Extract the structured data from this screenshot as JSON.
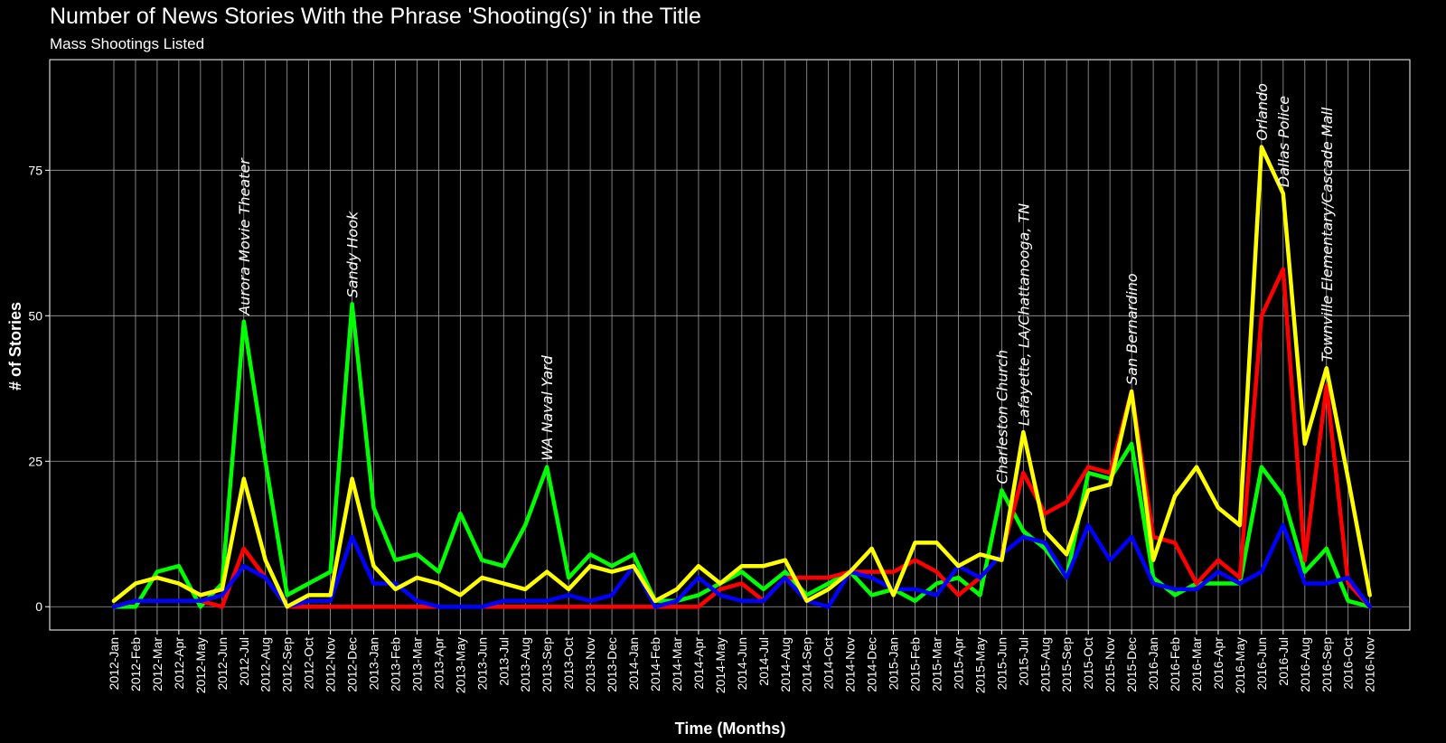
{
  "chart_data": {
    "type": "line",
    "title": "Number of News Stories With the Phrase 'Shooting(s)' in the Title",
    "subtitle": "Mass Shootings Listed",
    "xlabel": "Time (Months)",
    "ylabel": "# of Stories",
    "ylim": [
      -4,
      94
    ],
    "yticks": [
      0,
      25,
      50,
      75
    ],
    "grid": true,
    "legend": "none",
    "categories": [
      "2012-Jan",
      "2012-Feb",
      "2012-Mar",
      "2012-Apr",
      "2012-May",
      "2012-Jun",
      "2012-Jul",
      "2012-Aug",
      "2012-Sep",
      "2012-Oct",
      "2012-Nov",
      "2012-Dec",
      "2013-Jan",
      "2013-Feb",
      "2013-Mar",
      "2013-Apr",
      "2013-May",
      "2013-Jun",
      "2013-Jul",
      "2013-Aug",
      "2013-Sep",
      "2013-Oct",
      "2013-Nov",
      "2013-Dec",
      "2014-Jan",
      "2014-Feb",
      "2014-Mar",
      "2014-Apr",
      "2014-May",
      "2014-Jun",
      "2014-Jul",
      "2014-Aug",
      "2014-Sep",
      "2014-Oct",
      "2014-Nov",
      "2014-Dec",
      "2015-Jan",
      "2015-Feb",
      "2015-Mar",
      "2015-Apr",
      "2015-May",
      "2015-Jun",
      "2015-Jul",
      "2015-Aug",
      "2015-Sep",
      "2015-Oct",
      "2015-Nov",
      "2015-Dec",
      "2016-Jan",
      "2016-Feb",
      "2016-Mar",
      "2016-Apr",
      "2016-May",
      "2016-Jun",
      "2016-Jul",
      "2016-Aug",
      "2016-Sep",
      "2016-Oct",
      "2016-Nov"
    ],
    "series": [
      {
        "color": "#00ff00",
        "values": [
          0,
          0,
          6,
          7,
          0,
          4,
          49,
          25,
          2,
          4,
          6,
          52,
          17,
          8,
          9,
          6,
          16,
          8,
          7,
          14,
          24,
          5,
          9,
          7,
          9,
          1,
          1,
          2,
          4,
          6,
          3,
          6,
          2,
          4,
          6,
          2,
          3,
          1,
          4,
          5,
          2,
          20,
          13,
          10,
          5,
          23,
          22,
          28,
          5,
          2,
          4,
          4,
          4,
          24,
          19,
          6,
          10,
          1,
          0
        ]
      },
      {
        "color": "#ff0000",
        "values": [
          0,
          1,
          1,
          1,
          1,
          0,
          10,
          5,
          0,
          0,
          0,
          0,
          0,
          0,
          0,
          0,
          0,
          0,
          0,
          0,
          0,
          0,
          0,
          0,
          0,
          0,
          0,
          0,
          3,
          4,
          1,
          5,
          5,
          5,
          6,
          6,
          6,
          8,
          6,
          2,
          5,
          9,
          23,
          16,
          18,
          24,
          23,
          37,
          12,
          11,
          4,
          8,
          5,
          50,
          58,
          8,
          38,
          4,
          0
        ]
      },
      {
        "color": "#0000ff",
        "values": [
          0,
          1,
          1,
          1,
          1,
          2,
          7,
          5,
          0,
          1,
          1,
          12,
          4,
          4,
          1,
          0,
          0,
          0,
          1,
          1,
          1,
          2,
          1,
          2,
          7,
          0,
          1,
          5,
          2,
          1,
          1,
          5,
          1,
          0,
          6,
          5,
          3,
          3,
          2,
          7,
          5,
          9,
          12,
          11,
          5,
          14,
          8,
          12,
          4,
          3,
          3,
          6,
          4,
          6,
          14,
          4,
          4,
          5,
          0
        ]
      },
      {
        "color": "#ffff00",
        "values": [
          1,
          4,
          5,
          4,
          2,
          3,
          22,
          8,
          0,
          2,
          2,
          22,
          7,
          3,
          5,
          4,
          2,
          5,
          4,
          3,
          6,
          3,
          7,
          6,
          7,
          1,
          3,
          7,
          4,
          7,
          7,
          8,
          1,
          3,
          6,
          10,
          2,
          11,
          11,
          7,
          9,
          8,
          30,
          13,
          9,
          20,
          21,
          37,
          8,
          19,
          24,
          17,
          14,
          79,
          71,
          28,
          41,
          22,
          2
        ]
      }
    ],
    "annotations": [
      {
        "text": "Aurora Movie Theater",
        "category": "2012-Jul",
        "y": 49
      },
      {
        "text": "Sandy Hook",
        "category": "2012-Dec",
        "y": 52
      },
      {
        "text": "WA Naval Yard",
        "category": "2013-Sep",
        "y": 24
      },
      {
        "text": "Charleston Church",
        "category": "2015-Jun",
        "y": 20
      },
      {
        "text": "Lafayette, LA/Chattanooga, TN",
        "category": "2015-Jul",
        "y": 30
      },
      {
        "text": "San Bernardino",
        "category": "2015-Dec",
        "y": 37
      },
      {
        "text": "Orlando",
        "category": "2016-Jun",
        "y": 79
      },
      {
        "text": "Dallas Police",
        "category": "2016-Jul",
        "y": 71
      },
      {
        "text": "Townville Elementary/Cascade Mall",
        "category": "2016-Sep",
        "y": 41
      }
    ]
  }
}
